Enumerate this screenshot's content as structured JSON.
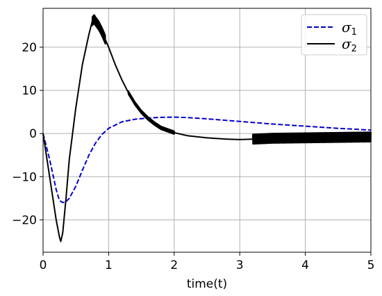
{
  "chart_data": {
    "type": "line",
    "xlabel": "time(t)",
    "ylabel": "",
    "xlim": [
      0,
      5
    ],
    "ylim": [
      -27.5,
      29
    ],
    "xticks": [
      0,
      1,
      2,
      3,
      4,
      5
    ],
    "yticks": [
      -20,
      -10,
      0,
      10,
      20
    ],
    "xtick_labels": [
      "0",
      "1",
      "2",
      "3",
      "4",
      "5"
    ],
    "ytick_labels": [
      "−20",
      "−10",
      "0",
      "10",
      "20"
    ],
    "grid": true,
    "legend_position": "top-right",
    "series": [
      {
        "name": "σ",
        "subscript": "1",
        "color": "#0000cc",
        "dash": "dashed",
        "x": [
          0,
          0.1,
          0.2,
          0.25,
          0.3,
          0.35,
          0.4,
          0.5,
          0.6,
          0.7,
          0.8,
          0.9,
          1.0,
          1.2,
          1.4,
          1.6,
          1.8,
          2.0,
          2.2,
          2.5,
          3.0,
          3.5,
          4.0,
          4.5,
          5.0
        ],
        "y": [
          0,
          -6,
          -13,
          -15.5,
          -16,
          -15.8,
          -15,
          -12.2,
          -8.5,
          -5,
          -2.2,
          -0.2,
          1.2,
          2.7,
          3.3,
          3.6,
          3.75,
          3.8,
          3.7,
          3.4,
          2.8,
          2.2,
          1.7,
          1.2,
          0.8
        ]
      },
      {
        "name": "σ",
        "subscript": "2",
        "color": "#000000",
        "dash": "solid",
        "x": [
          0,
          0.1,
          0.2,
          0.25,
          0.27,
          0.3,
          0.35,
          0.4,
          0.5,
          0.6,
          0.7,
          0.75,
          0.78,
          0.8,
          0.85,
          0.9,
          1.0,
          1.1,
          1.2,
          1.3,
          1.4,
          1.5,
          1.6,
          1.7,
          1.8,
          2.0,
          2.2,
          2.5,
          2.8,
          3.0,
          3.2,
          3.5,
          4.0,
          4.5,
          5.0
        ],
        "y": [
          0,
          -10,
          -20,
          -24,
          -25,
          -23,
          -15,
          -6,
          6,
          16,
          23,
          26,
          26.5,
          26,
          25,
          23.5,
          20,
          16,
          12.5,
          9.5,
          7,
          5,
          3.5,
          2.3,
          1.3,
          0.2,
          -0.5,
          -1.0,
          -1.3,
          -1.4,
          -1.3,
          -1.1,
          -1.0,
          -0.9,
          -0.8
        ],
        "oscillation": [
          {
            "x_start": 0.75,
            "x_end": 0.95,
            "amplitude": 1.0
          },
          {
            "x_start": 1.3,
            "x_end": 2.0,
            "amplitude": 0.35
          },
          {
            "x_start": 3.2,
            "x_end": 5.0,
            "amplitude": 1.1
          }
        ]
      }
    ]
  }
}
